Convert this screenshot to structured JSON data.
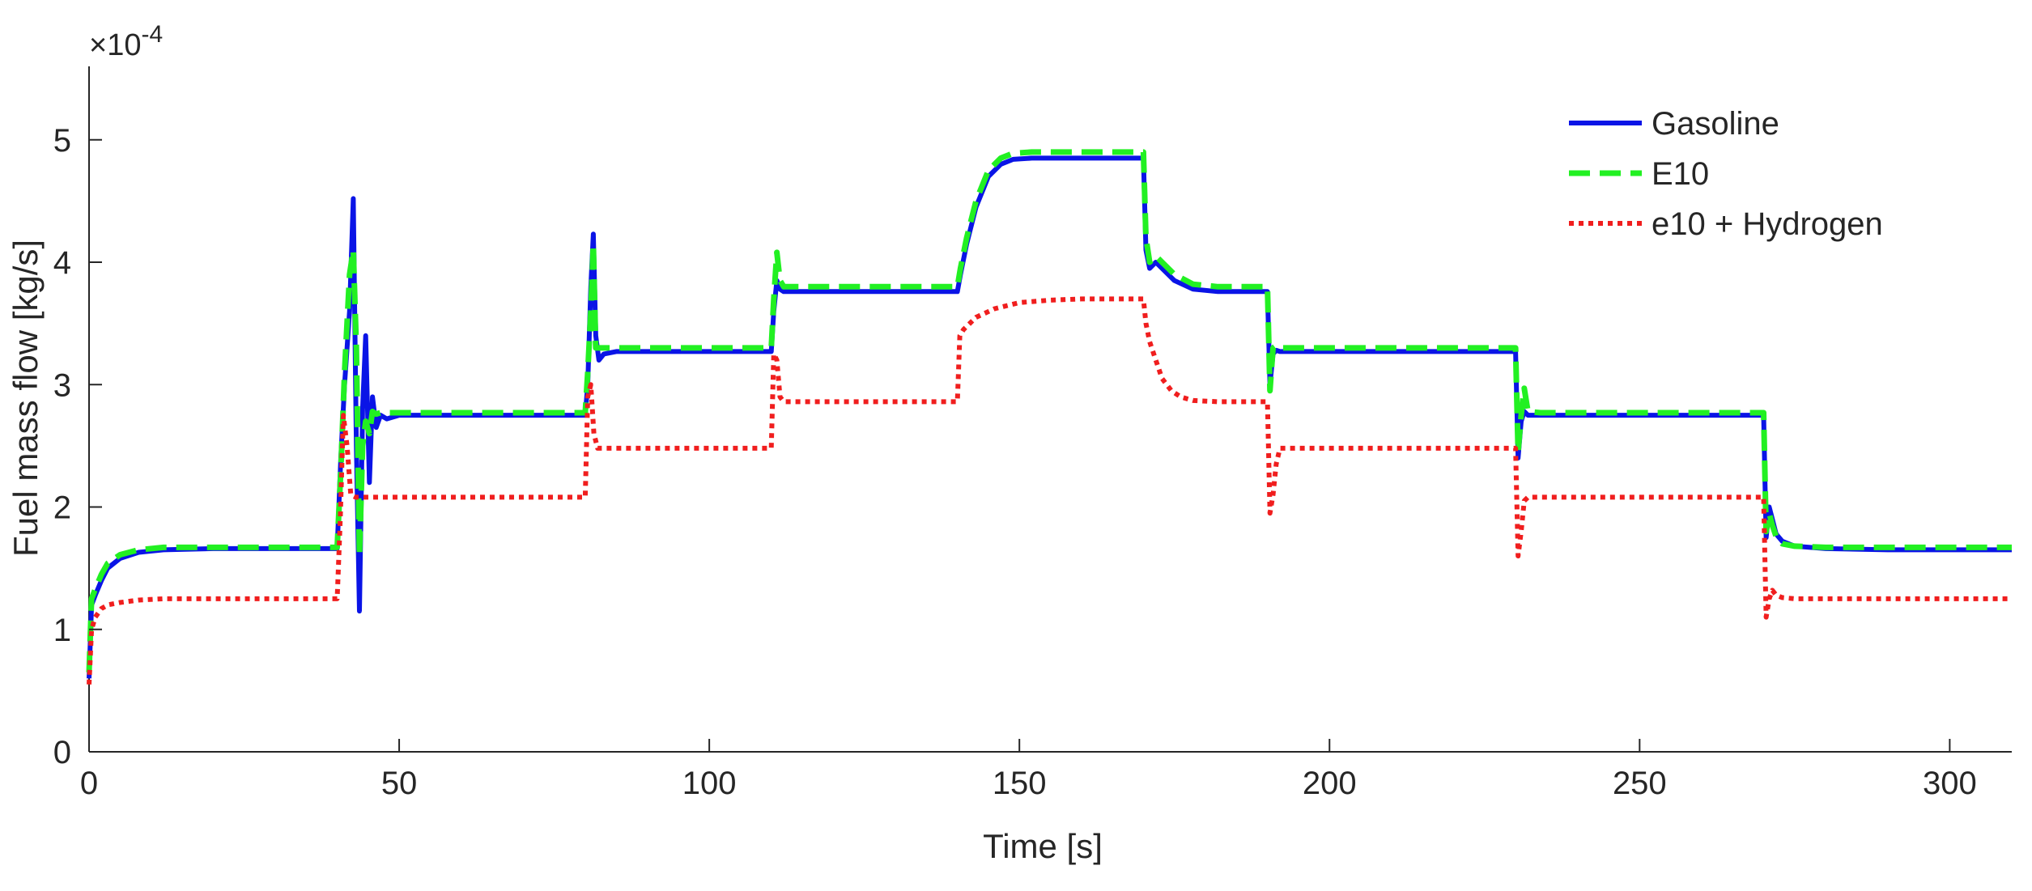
{
  "chart_data": {
    "type": "line",
    "title": "",
    "xlabel": "Time [s]",
    "ylabel": "Fuel mass flow [kg/s]",
    "y_exponent_label": "×10",
    "y_exponent_power": "-4",
    "xlim": [
      0,
      310
    ],
    "ylim": [
      0,
      5.6
    ],
    "xticks": [
      0,
      50,
      100,
      150,
      200,
      250,
      300
    ],
    "xtick_labels": [
      "0",
      "50",
      "100",
      "150",
      "200",
      "250",
      "300"
    ],
    "yticks": [
      0,
      1,
      2,
      3,
      4,
      5
    ],
    "ytick_labels": [
      "0",
      "1",
      "2",
      "3",
      "4",
      "5"
    ],
    "grid": false,
    "legend_position": "top-right",
    "series": [
      {
        "name": "Gasoline",
        "color": "#0a14e6",
        "style": "solid",
        "x": [
          0,
          0.4,
          1,
          2,
          3,
          5,
          8,
          12,
          20,
          30,
          40,
          40.6,
          41.2,
          42,
          42.6,
          43.1,
          43.6,
          44.1,
          44.6,
          45.2,
          45.7,
          46.3,
          47,
          48,
          50,
          60,
          70,
          80,
          80.4,
          80.9,
          81.3,
          81.7,
          82.2,
          83,
          85,
          90,
          100,
          110,
          110.4,
          110.9,
          111.4,
          112,
          113,
          115,
          120,
          130,
          140,
          140.5,
          141.5,
          143,
          145,
          147,
          149,
          152,
          155,
          160,
          170,
          170.4,
          171,
          172,
          173,
          175,
          178,
          182,
          190,
          190.4,
          190.9,
          191.4,
          192,
          194,
          197,
          200,
          210,
          220,
          230,
          230.4,
          230.9,
          231.4,
          232,
          234,
          237,
          240,
          250,
          260,
          270,
          270.4,
          270.9,
          271.4,
          272,
          273,
          275,
          280,
          290,
          300,
          310
        ],
        "y": [
          0.6,
          1.2,
          1.28,
          1.4,
          1.5,
          1.58,
          1.63,
          1.65,
          1.66,
          1.66,
          1.66,
          2.4,
          3.0,
          3.6,
          4.52,
          2.5,
          1.15,
          2.8,
          3.4,
          2.2,
          2.9,
          2.65,
          2.75,
          2.72,
          2.75,
          2.75,
          2.75,
          2.75,
          3.0,
          3.8,
          4.23,
          3.4,
          3.2,
          3.25,
          3.27,
          3.27,
          3.27,
          3.27,
          3.6,
          3.85,
          3.78,
          3.76,
          3.76,
          3.76,
          3.76,
          3.76,
          3.76,
          3.9,
          4.15,
          4.45,
          4.7,
          4.8,
          4.84,
          4.85,
          4.85,
          4.85,
          4.85,
          4.1,
          3.95,
          4.0,
          3.95,
          3.85,
          3.78,
          3.76,
          3.76,
          3.0,
          3.25,
          3.28,
          3.27,
          3.27,
          3.27,
          3.27,
          3.27,
          3.27,
          3.27,
          2.4,
          2.7,
          2.78,
          2.75,
          2.75,
          2.75,
          2.75,
          2.75,
          2.75,
          2.75,
          1.75,
          2.0,
          1.9,
          1.78,
          1.72,
          1.68,
          1.66,
          1.65,
          1.65,
          1.65
        ]
      },
      {
        "name": "E10",
        "color": "#22f022",
        "style": "dashed",
        "x": [
          0,
          0.4,
          1,
          2,
          3,
          5,
          8,
          12,
          20,
          30,
          40,
          40.6,
          41.2,
          42,
          42.6,
          43.1,
          43.6,
          44.1,
          44.6,
          45.2,
          45.7,
          46.3,
          47,
          48,
          50,
          60,
          70,
          80,
          80.4,
          80.9,
          81.3,
          81.7,
          82.2,
          83,
          85,
          90,
          100,
          110,
          110.4,
          110.9,
          111.4,
          112,
          113,
          115,
          120,
          130,
          140,
          140.5,
          141.5,
          143,
          145,
          147,
          149,
          152,
          155,
          160,
          170,
          170.4,
          171,
          172,
          173,
          175,
          178,
          182,
          190,
          190.4,
          190.9,
          191.4,
          192,
          194,
          197,
          200,
          210,
          220,
          230,
          230.4,
          230.9,
          231.4,
          232,
          234,
          237,
          240,
          250,
          260,
          270,
          270.4,
          270.9,
          271.4,
          272,
          273,
          275,
          280,
          290,
          300,
          310
        ],
        "y": [
          0.65,
          1.25,
          1.33,
          1.45,
          1.54,
          1.61,
          1.65,
          1.67,
          1.67,
          1.67,
          1.67,
          2.3,
          3.1,
          3.9,
          4.1,
          3.3,
          1.6,
          2.5,
          2.7,
          2.6,
          2.78,
          2.76,
          2.77,
          2.77,
          2.77,
          2.77,
          2.77,
          2.77,
          3.1,
          3.6,
          4.15,
          3.3,
          3.3,
          3.3,
          3.3,
          3.3,
          3.3,
          3.3,
          3.7,
          4.08,
          3.85,
          3.8,
          3.8,
          3.8,
          3.8,
          3.8,
          3.8,
          3.95,
          4.2,
          4.5,
          4.75,
          4.85,
          4.89,
          4.9,
          4.9,
          4.9,
          4.9,
          4.2,
          4.0,
          4.05,
          4.0,
          3.9,
          3.82,
          3.8,
          3.8,
          2.95,
          3.3,
          3.32,
          3.3,
          3.3,
          3.3,
          3.3,
          3.3,
          3.3,
          3.3,
          2.45,
          2.75,
          2.97,
          2.78,
          2.77,
          2.77,
          2.77,
          2.77,
          2.77,
          2.77,
          1.8,
          1.95,
          1.85,
          1.76,
          1.7,
          1.68,
          1.67,
          1.67,
          1.67,
          1.67
        ]
      },
      {
        "name": "e10 + Hydrogen",
        "color": "#f01e1e",
        "style": "dotted",
        "x": [
          0,
          0.4,
          1,
          2,
          3,
          5,
          8,
          12,
          20,
          30,
          40,
          40.5,
          41,
          41.6,
          42.2,
          43,
          45,
          50,
          60,
          70,
          80,
          80.4,
          80.9,
          81.4,
          82,
          85,
          90,
          100,
          110,
          110.4,
          110.9,
          111.4,
          112,
          115,
          120,
          130,
          140,
          140.4,
          141,
          143,
          146,
          150,
          155,
          160,
          165,
          170,
          170.4,
          171,
          172,
          173,
          174.5,
          176,
          178,
          182,
          190,
          190.4,
          190.9,
          191.4,
          192,
          195,
          200,
          210,
          220,
          230,
          230.4,
          230.9,
          231.4,
          232,
          235,
          240,
          250,
          260,
          270,
          270.4,
          270.9,
          271.4,
          272,
          273,
          275,
          280,
          290,
          300,
          310
        ],
        "y": [
          0.55,
          1.0,
          1.1,
          1.17,
          1.2,
          1.22,
          1.24,
          1.25,
          1.25,
          1.25,
          1.25,
          1.9,
          2.75,
          2.5,
          2.1,
          2.08,
          2.08,
          2.08,
          2.08,
          2.08,
          2.08,
          2.9,
          3.0,
          2.6,
          2.48,
          2.48,
          2.48,
          2.48,
          2.48,
          3.25,
          3.2,
          2.9,
          2.86,
          2.86,
          2.86,
          2.86,
          2.86,
          3.4,
          3.45,
          3.55,
          3.62,
          3.67,
          3.69,
          3.7,
          3.7,
          3.7,
          3.5,
          3.35,
          3.2,
          3.05,
          2.95,
          2.9,
          2.87,
          2.86,
          2.86,
          1.95,
          2.1,
          2.35,
          2.48,
          2.48,
          2.48,
          2.48,
          2.48,
          2.48,
          1.6,
          1.8,
          2.05,
          2.08,
          2.08,
          2.08,
          2.08,
          2.08,
          2.08,
          1.1,
          1.25,
          1.32,
          1.28,
          1.26,
          1.25,
          1.25,
          1.25,
          1.25,
          1.25
        ]
      }
    ]
  }
}
